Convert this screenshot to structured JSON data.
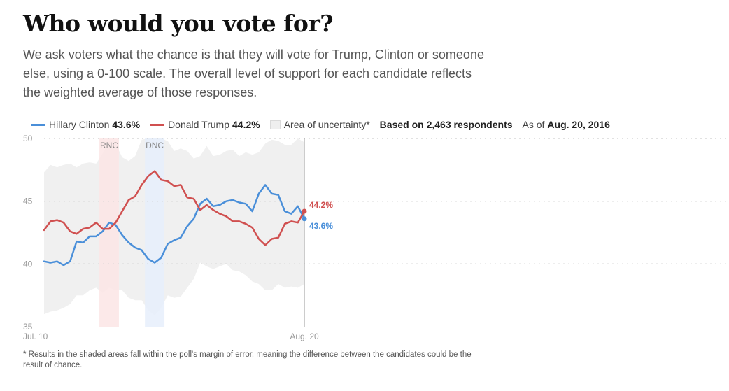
{
  "header": {
    "title": "Who would you vote for?",
    "intro": "We ask voters what the chance is that they will vote for Trump, Clinton or someone else, using a 0-100 scale. The overall level of support for each candidate reflects the weighted average of those responses."
  },
  "legend": {
    "clinton_label": "Hillary Clinton",
    "clinton_value": "43.6%",
    "trump_label": "Donald Trump",
    "trump_value": "44.2%",
    "uncertainty_label": "Area of uncertainty*",
    "respondents": "Based on 2,463 respondents",
    "as_of_prefix": "As of",
    "as_of_date": "Aug. 20, 2016"
  },
  "footnote": "* Results in the shaded areas fall within the poll's margin of error, meaning the difference between the candidates could be the result of chance.",
  "colors": {
    "clinton": "#4a8fd9",
    "trump": "#d05050",
    "uncertainty": "#f0f0f0",
    "rnc_band": "#fbe5e5",
    "dnc_band": "#e6eefb"
  },
  "chart_data": {
    "type": "line",
    "x_start_label": "Jul. 10",
    "x_end_label": "Aug. 20",
    "x_days": 41,
    "ylim": [
      35,
      50
    ],
    "yticks": [
      "35",
      "40",
      "45",
      "50"
    ],
    "conventions": [
      {
        "label": "RNC",
        "start_day": 8.5,
        "end_day": 11.5
      },
      {
        "label": "DNC",
        "start_day": 15.5,
        "end_day": 18.5
      }
    ],
    "series": [
      {
        "name": "Hillary Clinton",
        "end_label": "43.6%",
        "values": [
          40.2,
          40.1,
          40.2,
          39.9,
          40.2,
          41.8,
          41.7,
          42.2,
          42.2,
          42.6,
          43.3,
          43.1,
          42.3,
          41.7,
          41.3,
          41.1,
          40.4,
          40.1,
          40.5,
          41.6,
          41.9,
          42.1,
          43.0,
          43.6,
          44.8,
          45.2,
          44.6,
          44.7,
          45.0,
          45.1,
          44.9,
          44.8,
          44.2,
          45.6,
          46.3,
          45.6,
          45.5,
          44.2,
          44.0,
          44.6,
          43.6
        ]
      },
      {
        "name": "Donald Trump",
        "end_label": "44.2%",
        "values": [
          42.7,
          43.4,
          43.5,
          43.3,
          42.6,
          42.4,
          42.8,
          42.9,
          43.3,
          42.8,
          42.8,
          43.3,
          44.2,
          45.1,
          45.4,
          46.3,
          47.0,
          47.4,
          46.7,
          46.6,
          46.2,
          46.3,
          45.3,
          45.2,
          44.3,
          44.7,
          44.3,
          44.0,
          43.8,
          43.4,
          43.4,
          43.2,
          42.9,
          42.0,
          41.5,
          42.0,
          42.1,
          43.2,
          43.4,
          43.3,
          44.2
        ]
      }
    ],
    "uncertainty": {
      "upper": [
        47.3,
        47.9,
        47.7,
        47.9,
        48.0,
        47.7,
        48.0,
        48.1,
        48.0,
        48.8,
        49.8,
        49.6,
        48.5,
        48.2,
        48.6,
        49.9,
        50.0,
        50.0,
        50.0,
        49.8,
        49.0,
        49.2,
        49.0,
        48.4,
        48.6,
        49.4,
        48.6,
        48.7,
        49.0,
        49.1,
        48.6,
        48.9,
        48.7,
        48.9,
        49.6,
        49.9,
        49.8,
        49.5,
        49.5,
        50.0,
        49.7
      ],
      "lower": [
        36.0,
        36.2,
        36.3,
        36.5,
        36.8,
        37.5,
        37.5,
        37.9,
        38.1,
        37.7,
        38.1,
        37.9,
        37.9,
        37.3,
        37.1,
        37.1,
        36.3,
        35.9,
        36.5,
        37.5,
        37.3,
        37.4,
        38.1,
        38.8,
        40.1,
        39.8,
        39.6,
        39.8,
        40.0,
        39.5,
        39.4,
        39.1,
        38.6,
        38.4,
        37.9,
        37.9,
        38.4,
        38.1,
        38.2,
        38.1,
        38.4
      ]
    }
  }
}
